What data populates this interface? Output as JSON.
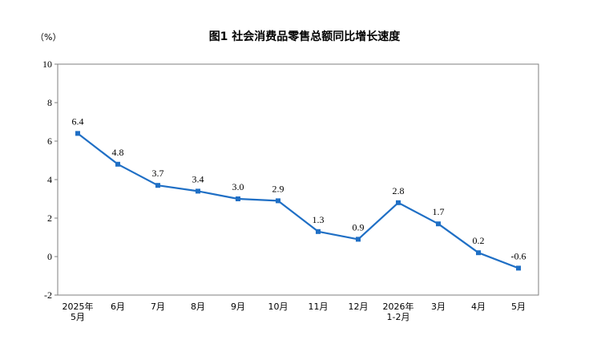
{
  "chart_data": {
    "type": "line",
    "title": "图1  社会消费品零售总额同比增长速度",
    "unit": "（%）",
    "categories": [
      [
        "2025年",
        "5月"
      ],
      [
        "6月"
      ],
      [
        "7月"
      ],
      [
        "8月"
      ],
      [
        "9月"
      ],
      [
        "10月"
      ],
      [
        "11月"
      ],
      [
        "12月"
      ],
      [
        "2026年",
        "1-2月"
      ],
      [
        "3月"
      ],
      [
        "4月"
      ],
      [
        "5月"
      ]
    ],
    "series": [
      {
        "values": [
          6.4,
          4.8,
          3.7,
          3.4,
          3.0,
          2.9,
          1.3,
          0.9,
          2.8,
          1.7,
          0.2,
          -0.6
        ],
        "labels": [
          "6.4",
          "4.8",
          "3.7",
          "3.4",
          "3.0",
          "2.9",
          "1.3",
          "0.9",
          "2.8",
          "1.7",
          "0.2",
          "-0.6"
        ]
      }
    ],
    "ylim": [
      -2,
      10
    ],
    "yticks": [
      -2,
      0,
      2,
      4,
      6,
      8,
      10
    ],
    "grid": false,
    "legend": "none",
    "line_color": "#1f6fc5",
    "xlabel": "",
    "ylabel": ""
  }
}
